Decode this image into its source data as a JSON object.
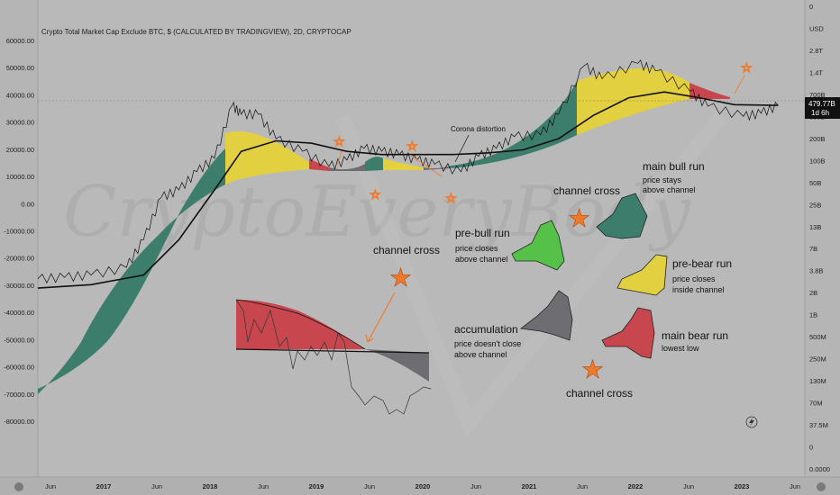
{
  "header": {
    "title": "Crypto Total Market Cap Exclude BTC, $ (CALCULATED BY TRADINGVIEW), 2D, CRYPTOCAP"
  },
  "watermark_text": "CryptoEveryBody",
  "axes": {
    "left_ticks": [
      "60000.00",
      "50000.00",
      "40000.00",
      "30000.00",
      "20000.00",
      "10000.00",
      "0.00",
      "-10000.00",
      "-20000.00",
      "-30000.00",
      "-40000.00",
      "-50000.00",
      "-60000.00",
      "-70000.00",
      "-80000.00"
    ],
    "right_ticks": [
      "0",
      "USD",
      "2.8T",
      "1.4T",
      "700B",
      "350B",
      "200B",
      "100B",
      "50B",
      "25B",
      "13B",
      "7B",
      "3.8B",
      "2B",
      "1B",
      "500M",
      "250M",
      "130M",
      "70M",
      "37.5M",
      "0",
      "0.0000"
    ],
    "x_ticks": [
      {
        "label": "Jun",
        "year": false
      },
      {
        "label": "2017",
        "year": true
      },
      {
        "label": "Jun",
        "year": false
      },
      {
        "label": "2018",
        "year": true
      },
      {
        "label": "Jun",
        "year": false
      },
      {
        "label": "2019",
        "year": true
      },
      {
        "label": "Jun",
        "year": false
      },
      {
        "label": "2020",
        "year": true
      },
      {
        "label": "Jun",
        "year": false
      },
      {
        "label": "2021",
        "year": true
      },
      {
        "label": "Jun",
        "year": false
      },
      {
        "label": "2022",
        "year": true
      },
      {
        "label": "Jun",
        "year": false
      },
      {
        "label": "2023",
        "year": true
      },
      {
        "label": "Jun",
        "year": false
      }
    ],
    "price_badge": {
      "value": "479.77B",
      "time": "1d 6h"
    }
  },
  "annotations": {
    "corona": "Corona distortion",
    "channel_cross_1": "channel cross",
    "channel_cross_2": "channel cross",
    "channel_cross_3": "channel cross",
    "main_bull_run": {
      "title": "main bull run",
      "line1": "price stays",
      "line2": "above channel"
    },
    "pre_bull_run": {
      "title": "pre-bull run",
      "line1": "price closes",
      "line2": "above channel"
    },
    "pre_bear_run": {
      "title": "pre-bear run",
      "line1": "price closes",
      "line2": "inside channel"
    },
    "accumulation": {
      "title": "accumulation",
      "line1": "price doesn't close",
      "line2": "above channel"
    },
    "main_bear_run": {
      "title": "main bear run",
      "line1": "lowest low"
    }
  },
  "colors": {
    "background": "#b9b9b9",
    "bull": "#3c7d6b",
    "pre_bull": "#55c148",
    "pre_bear": "#e3d040",
    "accumulation": "#6e6e72",
    "bear": "#c8474f",
    "cross_star": "#f07a2a"
  },
  "chart_data": {
    "type": "line",
    "title": "Crypto Total Market Cap Exclude BTC, $ (CALCULATED BY TRADINGVIEW), 2D, CRYPTOCAP",
    "y_scale": "log",
    "x_range": [
      "2016-03",
      "2023-06"
    ],
    "series": [
      {
        "x": [
          "2016-03",
          "2016-06",
          "2016-09",
          "2017-01",
          "2017-03",
          "2017-05",
          "2017-07",
          "2017-09",
          "2017-11",
          "2018-01",
          "2018-02",
          "2018-04",
          "2018-06",
          "2018-09",
          "2018-12",
          "2019-02",
          "2019-04",
          "2019-06",
          "2019-08",
          "2019-10",
          "2019-12",
          "2020-03",
          "2020-05",
          "2020-07",
          "2020-09",
          "2020-12",
          "2021-02",
          "2021-05",
          "2021-07",
          "2021-11",
          "2022-01",
          "2022-05",
          "2022-07",
          "2022-11",
          "2023-01",
          "2023-03"
        ],
        "values": [
          2.5,
          2.6,
          2.8,
          3.5,
          8,
          28,
          35,
          60,
          90,
          430,
          330,
          330,
          160,
          110,
          70,
          85,
          120,
          110,
          100,
          85,
          75,
          60,
          95,
          120,
          170,
          180,
          330,
          1400,
          950,
          1500,
          1200,
          650,
          420,
          310,
          340,
          430
        ]
      },
      {
        "x": [
          "2016-03",
          "2016-09",
          "2017-03",
          "2017-07",
          "2017-11",
          "2018-02",
          "2018-06",
          "2018-10",
          "2019-02",
          "2019-06",
          "2019-10",
          "2020-02",
          "2020-06",
          "2020-10",
          "2021-02",
          "2021-06",
          "2021-10",
          "2022-02",
          "2022-06",
          "2022-10",
          "2023-03"
        ],
        "values": [
          1.9,
          2.1,
          2.8,
          8,
          35,
          110,
          150,
          140,
          110,
          100,
          100,
          100,
          105,
          115,
          160,
          320,
          540,
          640,
          540,
          440,
          430
        ]
      }
    ]
  }
}
